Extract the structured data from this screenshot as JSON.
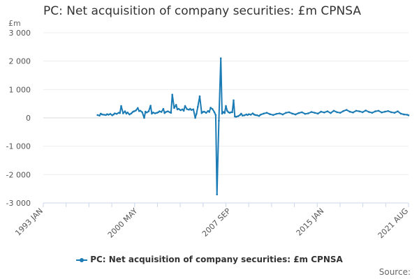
{
  "chart_data": {
    "type": "line",
    "title": "PC: Net acquisition of company securities: £m CPNSA",
    "ylabel": "£m",
    "xlabel": "",
    "ylim": [
      -3000,
      3000
    ],
    "yticks": [
      3000,
      2000,
      1000,
      0,
      -1000,
      -2000,
      -3000
    ],
    "ytick_labels": [
      "3 000",
      "2 000",
      "1 000",
      "0",
      "-1 000",
      "-2 000",
      "-3 000"
    ],
    "xlim": [
      1993.0,
      2021.6
    ],
    "xticks": [
      1993.0,
      2000.4,
      2007.7,
      2015.0,
      2021.6
    ],
    "xtick_labels": [
      "1993 JAN",
      "2000 MAY",
      "2007 SEP",
      "2015 JAN",
      "2021 AUG"
    ],
    "color": "#1b7bb5",
    "legend": "PC: Net acquisition of company securities: £m CPNSA",
    "series": [
      {
        "name": "PC: Net acquisition of company securities: £m CPNSA",
        "x": [
          1997.25,
          1997.4,
          1997.5,
          1997.6,
          1997.75,
          1997.9,
          1998.0,
          1998.1,
          1998.25,
          1998.4,
          1998.5,
          1998.6,
          1998.75,
          1998.9,
          1999.0,
          1999.1,
          1999.25,
          1999.4,
          1999.5,
          1999.6,
          1999.75,
          1999.9,
          2000.0,
          2000.1,
          2000.25,
          2000.4,
          2000.5,
          2000.6,
          2000.75,
          2000.9,
          2001.0,
          2001.1,
          2001.25,
          2001.4,
          2001.5,
          2001.6,
          2001.75,
          2001.9,
          2002.0,
          2002.1,
          2002.25,
          2002.4,
          2002.5,
          2002.6,
          2002.75,
          2002.9,
          2003.0,
          2003.1,
          2003.25,
          2003.4,
          2003.5,
          2003.6,
          2003.75,
          2003.9,
          2004.0,
          2004.1,
          2004.25,
          2004.4,
          2004.5,
          2004.6,
          2004.75,
          2004.9,
          2005.0,
          2005.1,
          2005.25,
          2005.4,
          2005.5,
          2005.6,
          2005.75,
          2005.9,
          2006.0,
          2006.1,
          2006.25,
          2006.4,
          2006.5,
          2006.6,
          2006.75,
          2006.9,
          2007.0,
          2007.1,
          2007.2,
          2007.3,
          2007.4,
          2007.5,
          2007.6,
          2007.7,
          2007.8,
          2007.9,
          2008.0,
          2008.1,
          2008.25,
          2008.4,
          2008.5,
          2008.6,
          2008.75,
          2008.9,
          2009.0,
          2009.1,
          2009.25,
          2009.4,
          2009.5,
          2009.6,
          2009.75,
          2009.9,
          2010.0,
          2010.25,
          2010.5,
          2010.75,
          2011.0,
          2011.25,
          2011.5,
          2011.75,
          2012.0,
          2012.25,
          2012.5,
          2012.75,
          2013.0,
          2013.25,
          2013.5,
          2013.75,
          2014.0,
          2014.25,
          2014.5,
          2014.75,
          2015.0,
          2015.25,
          2015.5,
          2015.75,
          2016.0,
          2016.25,
          2016.5,
          2016.75,
          2017.0,
          2017.25,
          2017.5,
          2017.75,
          2018.0,
          2018.25,
          2018.5,
          2018.75,
          2019.0,
          2019.25,
          2019.5,
          2019.75,
          2020.0,
          2020.25,
          2020.5,
          2020.75,
          2021.0,
          2021.25,
          2021.5,
          2021.6
        ],
        "values": [
          100,
          80,
          150,
          120,
          110,
          100,
          130,
          110,
          140,
          90,
          120,
          160,
          140,
          180,
          170,
          420,
          160,
          230,
          150,
          190,
          120,
          160,
          210,
          230,
          260,
          350,
          240,
          250,
          200,
          0,
          220,
          190,
          230,
          430,
          150,
          190,
          160,
          180,
          200,
          230,
          210,
          320,
          170,
          210,
          230,
          200,
          180,
          820,
          350,
          460,
          300,
          320,
          270,
          300,
          250,
          420,
          310,
          290,
          320,
          280,
          300,
          0,
          150,
          390,
          760,
          170,
          210,
          220,
          180,
          240,
          210,
          360,
          310,
          200,
          100,
          -2700,
          -100,
          2100,
          150,
          210,
          170,
          420,
          250,
          200,
          180,
          200,
          200,
          620,
          50,
          40,
          60,
          100,
          150,
          80,
          90,
          120,
          100,
          130,
          110,
          160,
          120,
          100,
          90,
          70,
          110,
          150,
          180,
          130,
          100,
          140,
          160,
          120,
          180,
          200,
          150,
          120,
          170,
          200,
          140,
          160,
          210,
          180,
          150,
          220,
          190,
          230,
          170,
          250,
          200,
          180,
          240,
          280,
          220,
          190,
          250,
          230,
          200,
          260,
          210,
          180,
          230,
          250,
          190,
          220,
          240,
          200,
          180,
          230,
          150,
          120,
          110,
          90
        ]
      }
    ]
  },
  "footer": {
    "source_label": "Source:"
  }
}
